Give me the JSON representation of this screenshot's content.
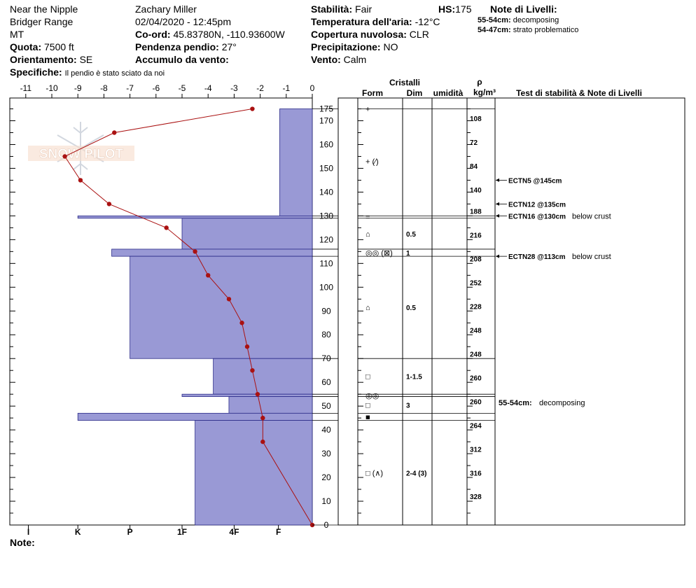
{
  "header": {
    "location": "Near the Nipple",
    "range": "Bridger Range",
    "state": "MT",
    "observer": "Zachary Miller",
    "datetime": "02/04/2020 - 12:45pm",
    "coord_label": "Co-ord:",
    "coord_value": "45.83780N, -110.93600W",
    "elev_label": "Quota:",
    "elev_value": "7500 ft",
    "slope_label": "Pendenza pendio:",
    "slope_value": "27°",
    "aspect_label": "Orientamento:",
    "aspect_value": "SE",
    "wind_load_label": "Accumulo da vento:",
    "specifics_label": "Specifiche:",
    "specifics_value": "Il pendio è stato sciato da noi",
    "stability_label": "Stabilità:",
    "stability_value": "Fair",
    "hs_label": "HS:",
    "hs_value": "175",
    "air_temp_label": "Temperatura dell'aria:",
    "air_temp_value": "-12°C",
    "cloud_label": "Copertura nuvolosa:",
    "cloud_value": "CLR",
    "precip_label": "Precipitazione:",
    "precip_value": "NO",
    "wind_label": "Vento:",
    "wind_value": "Calm",
    "layer_notes_title": "Note di Livelli:",
    "layer_notes": [
      {
        "label": "55-54cm:",
        "text": "decomposing"
      },
      {
        "label": "54-47cm:",
        "text": "strato problematico"
      }
    ]
  },
  "footer": {
    "notes_label": "Note:"
  },
  "watermark": {
    "text": "SNOW PILOT"
  },
  "table_headers": {
    "crystals": "Cristalli",
    "form": "Form",
    "dim": "Dim",
    "humidity": "umidità",
    "rho": "ρ",
    "density_unit": "kg/m³",
    "tests": "Test di stabilità & Note di Livelli"
  },
  "colors": {
    "hardness_fill": "#9999d5",
    "temp_line": "#aa1111",
    "grid": "#000000"
  },
  "chart_data": {
    "type": "snow-profile",
    "temp_axis": {
      "ticks": [
        "-11",
        "-10",
        "-9",
        "-8",
        "-7",
        "-6",
        "-5",
        "-4",
        "-3",
        "-2",
        "-1",
        "0"
      ],
      "range": [
        -11.5,
        0
      ]
    },
    "hardness_axis": {
      "labels": [
        "I",
        "K",
        "P",
        "1F",
        "4F",
        "F"
      ]
    },
    "height_axis": {
      "ticks": [
        "175",
        "170",
        "160",
        "150",
        "140",
        "130",
        "120",
        "110",
        "100",
        "90",
        "80",
        "70",
        "60",
        "50",
        "40",
        "30",
        "20",
        "10",
        "0"
      ],
      "range": [
        0,
        175
      ]
    },
    "hardness_layers": [
      {
        "top": 175,
        "bottom": 130,
        "value": 1.25
      },
      {
        "top": 130,
        "bottom": 129,
        "value": 9.0
      },
      {
        "top": 129,
        "bottom": 116,
        "value": 5.0
      },
      {
        "top": 116,
        "bottom": 113,
        "value": 7.7
      },
      {
        "top": 113,
        "bottom": 70,
        "value": 7.0
      },
      {
        "top": 70,
        "bottom": 55,
        "value": 3.8
      },
      {
        "top": 55,
        "bottom": 54,
        "value": 5.0
      },
      {
        "top": 54,
        "bottom": 47,
        "value": 3.2
      },
      {
        "top": 47,
        "bottom": 44,
        "value": 9.0
      },
      {
        "top": 44,
        "bottom": 0,
        "value": 4.5
      }
    ],
    "temperature_profile": [
      {
        "h": 175,
        "t": -2.3
      },
      {
        "h": 165,
        "t": -7.6
      },
      {
        "h": 155,
        "t": -9.5
      },
      {
        "h": 145,
        "t": -8.9
      },
      {
        "h": 135,
        "t": -7.8
      },
      {
        "h": 125,
        "t": -5.6
      },
      {
        "h": 115,
        "t": -4.5
      },
      {
        "h": 105,
        "t": -4.0
      },
      {
        "h": 95,
        "t": -3.2
      },
      {
        "h": 85,
        "t": -2.7
      },
      {
        "h": 75,
        "t": -2.5
      },
      {
        "h": 65,
        "t": -2.3
      },
      {
        "h": 55,
        "t": -2.1
      },
      {
        "h": 45,
        "t": -1.9
      },
      {
        "h": 35,
        "t": -1.9
      },
      {
        "h": 0,
        "t": 0
      }
    ],
    "layer_boundaries": [
      175,
      130,
      129,
      116,
      113,
      70,
      55,
      54,
      47,
      44,
      0
    ],
    "crystals": [
      {
        "h": 175,
        "form": "+",
        "dim": ""
      },
      {
        "h": 153,
        "form": "+ (⁄)",
        "dim": ""
      },
      {
        "h": 129.5,
        "form": "=",
        "dim": ""
      },
      {
        "h": 122.5,
        "form": "⌂",
        "dim": "0.5"
      },
      {
        "h": 114.5,
        "form": "◎◎ (⊠)",
        "dim": "1"
      },
      {
        "h": 91.5,
        "form": "⌂",
        "dim": "0.5"
      },
      {
        "h": 62.5,
        "form": "□",
        "dim": "1-1.5"
      },
      {
        "h": 54.5,
        "form": "◎◎",
        "dim": ""
      },
      {
        "h": 50.5,
        "form": "□",
        "dim": "3"
      },
      {
        "h": 45.5,
        "form": "■",
        "dim": ""
      },
      {
        "h": 22,
        "form": "□ (∧)",
        "dim": "2-4 (3)"
      }
    ],
    "densities": [
      {
        "h": 171,
        "v": "108"
      },
      {
        "h": 161,
        "v": "72"
      },
      {
        "h": 151,
        "v": "84"
      },
      {
        "h": 141,
        "v": "140"
      },
      {
        "h": 132,
        "v": "188"
      },
      {
        "h": 122,
        "v": "216"
      },
      {
        "h": 112,
        "v": "208"
      },
      {
        "h": 102,
        "v": "252"
      },
      {
        "h": 92,
        "v": "228"
      },
      {
        "h": 82,
        "v": "248"
      },
      {
        "h": 72,
        "v": "248"
      },
      {
        "h": 62,
        "v": "260"
      },
      {
        "h": 52,
        "v": "260"
      },
      {
        "h": 42,
        "v": "264"
      },
      {
        "h": 32,
        "v": "312"
      },
      {
        "h": 22,
        "v": "316"
      },
      {
        "h": 12,
        "v": "328"
      }
    ],
    "stability_tests": [
      {
        "h": 145,
        "label": "ECTN5 @145cm",
        "note": ""
      },
      {
        "h": 135,
        "label": "ECTN12 @135cm",
        "note": ""
      },
      {
        "h": 130,
        "label": "ECTN16 @130cm",
        "note": "below crust"
      },
      {
        "h": 113,
        "label": "ECTN28 @113cm",
        "note": "below crust"
      }
    ],
    "layer_notes_chart": [
      {
        "h": 54.5,
        "label": "55-54cm:",
        "text": "decomposing"
      }
    ]
  }
}
